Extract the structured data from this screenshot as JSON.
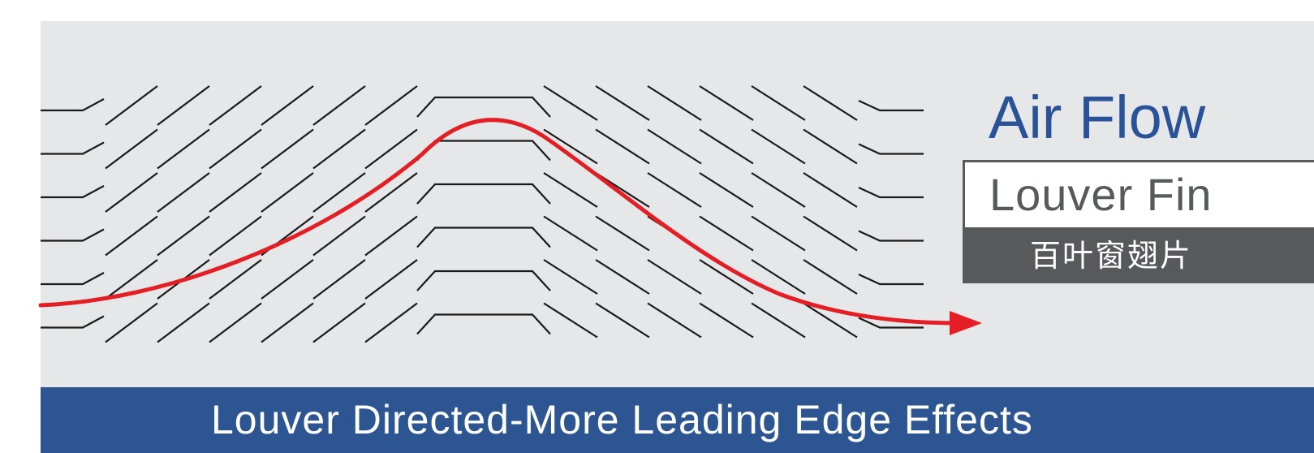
{
  "title": "Air Flow",
  "fin_label_en": "Louver Fin",
  "fin_label_cn": "百叶窗翅片",
  "caption": "Louver Directed-More Leading Edge Effects",
  "colors": {
    "background_panel": "#e6e7e8",
    "title_blue": "#2a5298",
    "caption_bar": "#2c5591",
    "label_gray": "#58595b",
    "flow_arrow": "#e31e24",
    "fin_lines": "#1a1a1a"
  },
  "diagram": {
    "fin_rows": 6,
    "fins_per_row": 17,
    "flow_direction": "left-to-right"
  }
}
